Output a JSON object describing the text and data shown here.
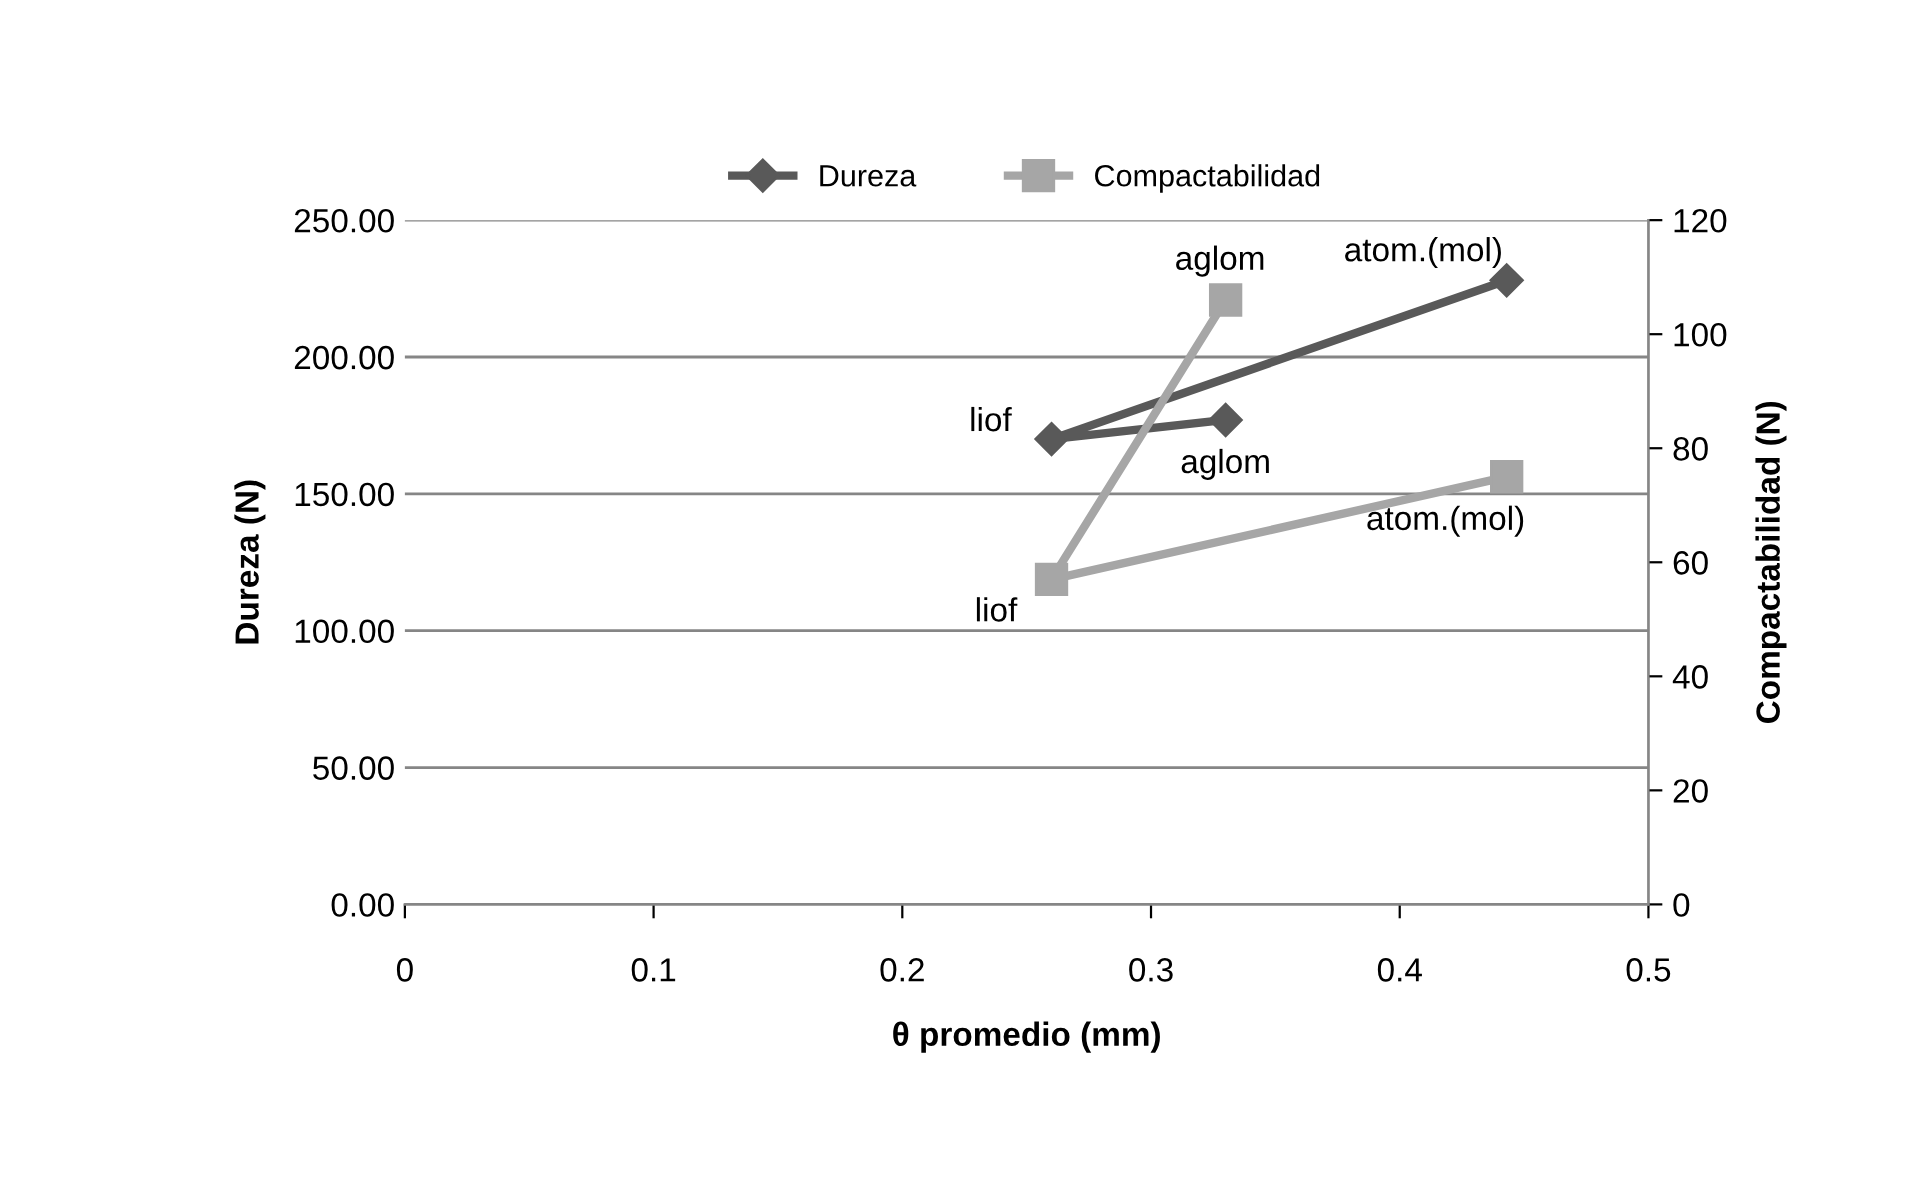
{
  "chart_data": {
    "type": "line",
    "xlabel": "θ promedio (mm)",
    "ylabel": "Dureza (N)",
    "y2label": "Compactabilidad (N)",
    "xlim": [
      0,
      0.5
    ],
    "xticks": [
      0,
      0.1,
      0.2,
      0.3,
      0.4,
      0.5
    ],
    "ylim": [
      0,
      250
    ],
    "yticks": [
      {
        "value": 0,
        "label": "0.00"
      },
      {
        "value": 50,
        "label": "50.00"
      },
      {
        "value": 100,
        "label": "100.00"
      },
      {
        "value": 150,
        "label": "150.00"
      },
      {
        "value": 200,
        "label": "200.00"
      },
      {
        "value": 250,
        "label": "250.00"
      }
    ],
    "y2lim": [
      0,
      120
    ],
    "y2ticks": [
      0,
      20,
      40,
      60,
      80,
      100,
      120
    ],
    "grid": "y",
    "legend": "top",
    "series": [
      {
        "name": "Dureza",
        "color": "#595959",
        "marker": "diamond",
        "x": [
          0.33,
          0.26,
          0.443
        ],
        "values": [
          177,
          170,
          228
        ],
        "value_labels": [
          "aglom",
          "liof",
          "atom.(mol)"
        ]
      },
      {
        "name": "Compactabilidad",
        "color": "#a6a6a6",
        "marker": "square",
        "axis": "y2",
        "x": [
          0.33,
          0.26,
          0.443
        ],
        "values": [
          106,
          57,
          75
        ],
        "value_labels": [
          "aglom",
          "liof",
          "atom.(mol)"
        ]
      }
    ]
  }
}
